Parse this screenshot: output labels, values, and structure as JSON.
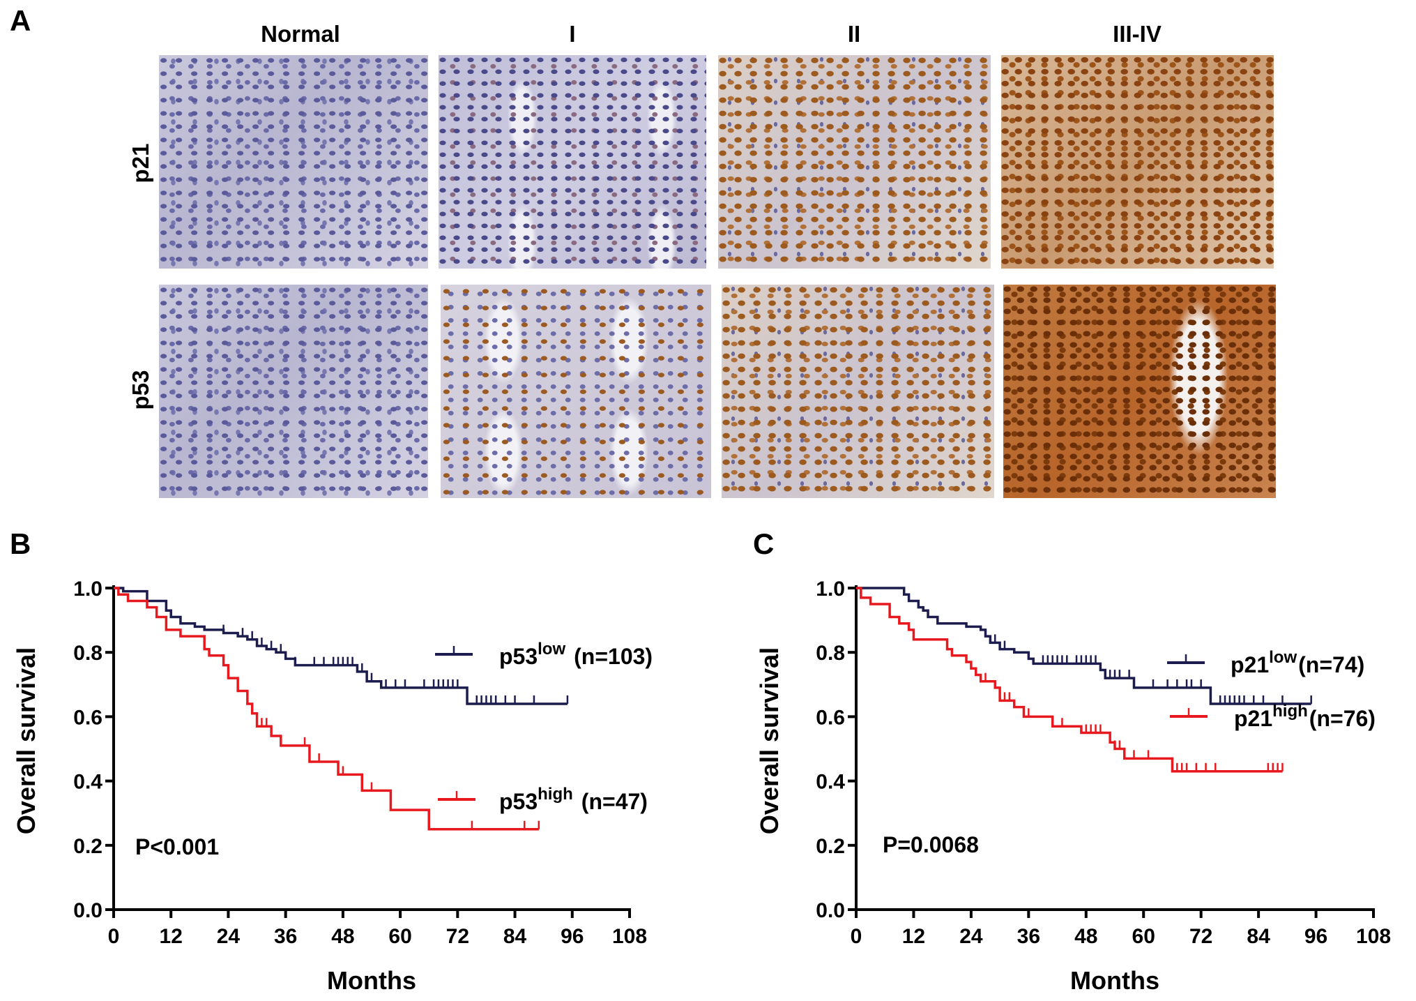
{
  "panel_letters": {
    "a": "A",
    "b": "B",
    "c": "C"
  },
  "panel_a": {
    "columns": [
      "Normal",
      "I",
      "II",
      "III-IV"
    ],
    "rows": [
      "p21",
      "p53"
    ]
  },
  "colors": {
    "low": "#1c1c4e",
    "high": "#e8191e",
    "axis": "#000000"
  },
  "chart_data": [
    {
      "type": "line",
      "subtype": "kaplan-meier",
      "panel": "B",
      "xlabel": "Months",
      "ylabel": "Overall survival",
      "xlim": [
        0,
        108
      ],
      "ylim": [
        0,
        1.0
      ],
      "xticks": [
        "0",
        "12",
        "24",
        "36",
        "48",
        "60",
        "72",
        "84",
        "96",
        "108"
      ],
      "yticks": [
        "0.0",
        "0.2",
        "0.4",
        "0.6",
        "0.8",
        "1.0"
      ],
      "annotation": "P<0.001",
      "series": [
        {
          "name": "p53",
          "sup": "low",
          "n_label": "(n=103)",
          "color_key": "low",
          "steps": [
            [
              0,
              1.0
            ],
            [
              2,
              0.99
            ],
            [
              7,
              0.96
            ],
            [
              11,
              0.93
            ],
            [
              12,
              0.91
            ],
            [
              14,
              0.89
            ],
            [
              17,
              0.88
            ],
            [
              19,
              0.87
            ],
            [
              23,
              0.86
            ],
            [
              26,
              0.85
            ],
            [
              28,
              0.84
            ],
            [
              30,
              0.82
            ],
            [
              32,
              0.81
            ],
            [
              34,
              0.8
            ],
            [
              36,
              0.78
            ],
            [
              38,
              0.76
            ],
            [
              51,
              0.74
            ],
            [
              53,
              0.71
            ],
            [
              56,
              0.69
            ],
            [
              74,
              0.64
            ]
          ],
          "end": 95,
          "censored": [
            23,
            27,
            29,
            31,
            33,
            35,
            38,
            42,
            44,
            46,
            47,
            48,
            49,
            50,
            52,
            54,
            57,
            59,
            61,
            65,
            67,
            68,
            69,
            70,
            71,
            72,
            76,
            77,
            78,
            79,
            80,
            82,
            84,
            88
          ]
        },
        {
          "name": "p53",
          "sup": "high",
          "n_label": "(n=47)",
          "color_key": "high",
          "steps": [
            [
              0,
              1.0
            ],
            [
              1,
              0.98
            ],
            [
              3,
              0.96
            ],
            [
              7,
              0.94
            ],
            [
              9,
              0.91
            ],
            [
              11,
              0.87
            ],
            [
              14,
              0.85
            ],
            [
              19,
              0.81
            ],
            [
              20,
              0.79
            ],
            [
              23,
              0.76
            ],
            [
              24,
              0.72
            ],
            [
              26,
              0.68
            ],
            [
              28,
              0.64
            ],
            [
              29,
              0.61
            ],
            [
              30,
              0.57
            ],
            [
              33,
              0.54
            ],
            [
              35,
              0.51
            ],
            [
              41,
              0.46
            ],
            [
              47,
              0.42
            ],
            [
              52,
              0.37
            ],
            [
              58,
              0.31
            ],
            [
              66,
              0.25
            ]
          ],
          "end": 89,
          "censored": [
            31,
            32,
            40,
            43,
            47,
            48,
            54,
            75,
            86
          ]
        }
      ]
    },
    {
      "type": "line",
      "subtype": "kaplan-meier",
      "panel": "C",
      "xlabel": "Months",
      "ylabel": "Overall survival",
      "xlim": [
        0,
        108
      ],
      "ylim": [
        0,
        1.0
      ],
      "xticks": [
        "0",
        "12",
        "24",
        "36",
        "48",
        "60",
        "72",
        "84",
        "96",
        "108"
      ],
      "yticks": [
        "0.0",
        "0.2",
        "0.4",
        "0.6",
        "0.8",
        "1.0"
      ],
      "annotation": "P=0.0068",
      "series": [
        {
          "name": "p21",
          "sup": "low",
          "n_label": "(n=74)",
          "color_key": "low",
          "steps": [
            [
              0,
              1.0
            ],
            [
              10,
              0.98
            ],
            [
              11,
              0.96
            ],
            [
              13,
              0.94
            ],
            [
              14,
              0.93
            ],
            [
              15,
              0.91
            ],
            [
              17,
              0.89
            ],
            [
              23,
              0.88
            ],
            [
              26,
              0.87
            ],
            [
              27,
              0.85
            ],
            [
              28,
              0.83
            ],
            [
              30,
              0.81
            ],
            [
              33,
              0.8
            ],
            [
              36,
              0.78
            ],
            [
              37,
              0.765
            ],
            [
              51,
              0.745
            ],
            [
              52,
              0.72
            ],
            [
              58,
              0.69
            ],
            [
              74,
              0.64
            ]
          ],
          "end": 95,
          "censored": [
            29,
            31,
            39,
            40,
            41,
            42,
            43,
            44,
            46,
            47,
            48,
            49,
            50,
            53,
            54,
            55,
            57,
            62,
            65,
            67,
            69,
            70,
            72,
            76,
            77,
            78,
            79,
            80,
            81,
            83,
            85,
            89
          ]
        },
        {
          "name": "p21",
          "sup": "high",
          "n_label": "(n=76)",
          "color_key": "high",
          "steps": [
            [
              0,
              1.0
            ],
            [
              1,
              0.97
            ],
            [
              3,
              0.95
            ],
            [
              7,
              0.91
            ],
            [
              9,
              0.89
            ],
            [
              11,
              0.87
            ],
            [
              12,
              0.84
            ],
            [
              19,
              0.81
            ],
            [
              20,
              0.79
            ],
            [
              23,
              0.77
            ],
            [
              24,
              0.75
            ],
            [
              25,
              0.73
            ],
            [
              26,
              0.71
            ],
            [
              29,
              0.69
            ],
            [
              30,
              0.65
            ],
            [
              33,
              0.63
            ],
            [
              35,
              0.6
            ],
            [
              41,
              0.57
            ],
            [
              47,
              0.55
            ],
            [
              53,
              0.52
            ],
            [
              54,
              0.5
            ],
            [
              56,
              0.47
            ],
            [
              66,
              0.43
            ]
          ],
          "end": 89,
          "censored": [
            27,
            31,
            32,
            36,
            43,
            48,
            49,
            50,
            51,
            54,
            55,
            58,
            61,
            67,
            68,
            69,
            71,
            73,
            75,
            86,
            87,
            88
          ]
        }
      ]
    }
  ]
}
